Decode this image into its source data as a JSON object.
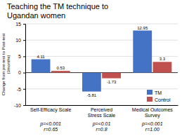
{
  "chart_data": {
    "type": "bar",
    "title": "Teaching the TM technique to\nUgandan women",
    "y_label": "Change from pre-test to Post-test\n(3months)",
    "categories": [
      "Self-Efficacy Scale",
      "Perceived\nStress Scale",
      "Medical Outcomes\nSurvey"
    ],
    "series": [
      {
        "name": "TM",
        "color": "#4472C4",
        "values": [
          4.11,
          -5.81,
          12.95
        ]
      },
      {
        "name": "Control",
        "color": "#C0504D",
        "values": [
          0.53,
          -1.73,
          3.3
        ]
      }
    ],
    "ylim": [
      -10,
      15
    ],
    "yticks": [
      -10,
      -5,
      0,
      5,
      10,
      15
    ],
    "grid": true,
    "legend": "lower right",
    "data_labels": true,
    "annotations": [
      "p=<0.001\nr=0.65",
      "p=<0.01\nr=0.8",
      "p=<0.001\nr=1.00"
    ]
  }
}
